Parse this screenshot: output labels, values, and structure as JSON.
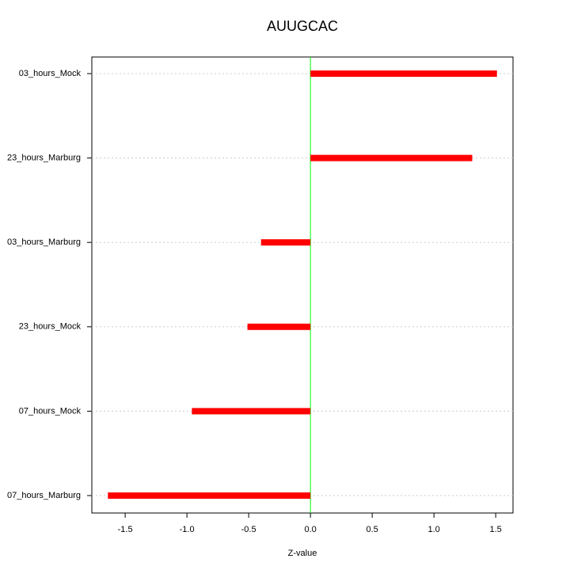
{
  "chart_data": {
    "type": "hbar",
    "title": "AUUGCAC",
    "xlabel": "Z-value",
    "categories": [
      "03_hours_Mock",
      "23_hours_Marburg",
      "03_hours_Marburg",
      "23_hours_Mock",
      "07_hours_Mock",
      "07_hours_Marburg"
    ],
    "values": [
      1.51,
      1.31,
      -0.4,
      -0.51,
      -0.96,
      -1.64
    ],
    "color": "#ff0000",
    "xlim": [
      -1.77,
      1.64
    ],
    "xticks": [
      -1.5,
      {
        "value": -1,
        "label": "-1.0"
      },
      -0.5,
      {
        "value": 0,
        "label": "0.0"
      },
      0.5,
      {
        "value": 1,
        "label": "1.0"
      },
      1.5
    ],
    "grid": true,
    "reference_line": {
      "x": 0,
      "color": "#00ff00"
    }
  }
}
